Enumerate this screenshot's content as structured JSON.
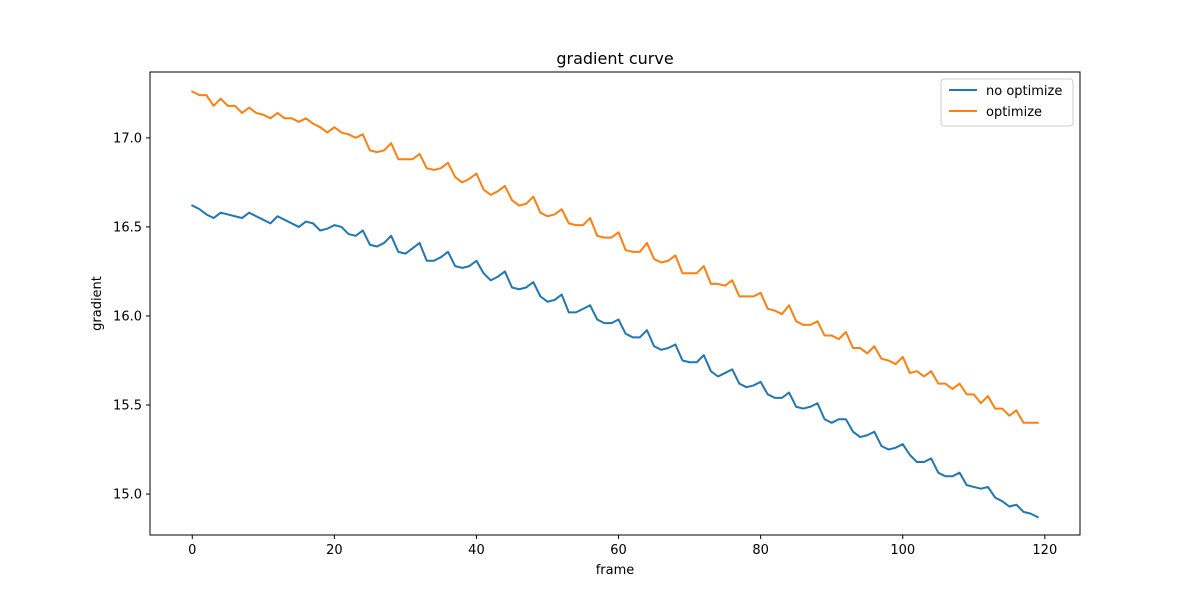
{
  "chart_data": {
    "type": "line",
    "title": "gradient curve",
    "xlabel": "frame",
    "ylabel": "gradient",
    "xlim": [
      -5.95,
      124.95
    ],
    "ylim": [
      14.77,
      17.37
    ],
    "xticks": [
      0,
      20,
      40,
      60,
      80,
      100,
      120
    ],
    "xtick_labels": [
      "0",
      "20",
      "40",
      "60",
      "80",
      "100",
      "120"
    ],
    "yticks": [
      15.0,
      15.5,
      16.0,
      16.5,
      17.0
    ],
    "ytick_labels": [
      "15.0",
      "15.5",
      "16.0",
      "16.5",
      "17.0"
    ],
    "grid": false,
    "legend_position": "top-right",
    "x": [
      0,
      1,
      2,
      3,
      4,
      5,
      6,
      7,
      8,
      9,
      10,
      11,
      12,
      13,
      14,
      15,
      16,
      17,
      18,
      19,
      20,
      21,
      22,
      23,
      24,
      25,
      26,
      27,
      28,
      29,
      30,
      31,
      32,
      33,
      34,
      35,
      36,
      37,
      38,
      39,
      40,
      41,
      42,
      43,
      44,
      45,
      46,
      47,
      48,
      49,
      50,
      51,
      52,
      53,
      54,
      55,
      56,
      57,
      58,
      59,
      60,
      61,
      62,
      63,
      64,
      65,
      66,
      67,
      68,
      69,
      70,
      71,
      72,
      73,
      74,
      75,
      76,
      77,
      78,
      79,
      80,
      81,
      82,
      83,
      84,
      85,
      86,
      87,
      88,
      89,
      90,
      91,
      92,
      93,
      94,
      95,
      96,
      97,
      98,
      99,
      100,
      101,
      102,
      103,
      104,
      105,
      106,
      107,
      108,
      109,
      110,
      111,
      112,
      113,
      114,
      115,
      116,
      117,
      118,
      119
    ],
    "series": [
      {
        "name": "no optimize",
        "color": "#1f77b4",
        "values": [
          16.62,
          16.6,
          16.57,
          16.55,
          16.58,
          16.57,
          16.56,
          16.55,
          16.58,
          16.56,
          16.54,
          16.52,
          16.56,
          16.54,
          16.52,
          16.5,
          16.53,
          16.52,
          16.48,
          16.49,
          16.51,
          16.5,
          16.46,
          16.45,
          16.48,
          16.4,
          16.39,
          16.41,
          16.45,
          16.36,
          16.35,
          16.38,
          16.41,
          16.31,
          16.31,
          16.33,
          16.36,
          16.28,
          16.27,
          16.28,
          16.31,
          16.24,
          16.2,
          16.22,
          16.25,
          16.16,
          16.15,
          16.16,
          16.19,
          16.11,
          16.08,
          16.09,
          16.12,
          16.02,
          16.02,
          16.04,
          16.06,
          15.98,
          15.96,
          15.96,
          15.98,
          15.9,
          15.88,
          15.88,
          15.92,
          15.83,
          15.81,
          15.82,
          15.84,
          15.75,
          15.74,
          15.74,
          15.78,
          15.69,
          15.66,
          15.68,
          15.7,
          15.62,
          15.6,
          15.61,
          15.63,
          15.56,
          15.54,
          15.54,
          15.57,
          15.49,
          15.48,
          15.49,
          15.51,
          15.42,
          15.4,
          15.42,
          15.42,
          15.35,
          15.32,
          15.33,
          15.35,
          15.27,
          15.25,
          15.26,
          15.28,
          15.22,
          15.18,
          15.18,
          15.2,
          15.12,
          15.1,
          15.1,
          15.12,
          15.05,
          15.04,
          15.03,
          15.04,
          14.98,
          14.96,
          14.93,
          14.94,
          14.9,
          14.89,
          14.87
        ]
      },
      {
        "name": "optimize",
        "color": "#ff7f0e",
        "values": [
          17.26,
          17.24,
          17.24,
          17.18,
          17.22,
          17.18,
          17.18,
          17.14,
          17.17,
          17.14,
          17.13,
          17.11,
          17.14,
          17.11,
          17.11,
          17.09,
          17.11,
          17.08,
          17.06,
          17.03,
          17.06,
          17.03,
          17.02,
          17.0,
          17.02,
          16.93,
          16.92,
          16.93,
          16.97,
          16.88,
          16.88,
          16.88,
          16.91,
          16.83,
          16.82,
          16.83,
          16.86,
          16.78,
          16.75,
          16.77,
          16.8,
          16.71,
          16.68,
          16.7,
          16.73,
          16.65,
          16.62,
          16.63,
          16.67,
          16.58,
          16.56,
          16.57,
          16.6,
          16.52,
          16.51,
          16.51,
          16.55,
          16.45,
          16.44,
          16.44,
          16.47,
          16.37,
          16.36,
          16.36,
          16.41,
          16.32,
          16.3,
          16.31,
          16.34,
          16.24,
          16.24,
          16.24,
          16.28,
          16.18,
          16.18,
          16.17,
          16.2,
          16.11,
          16.11,
          16.11,
          16.13,
          16.04,
          16.03,
          16.01,
          16.06,
          15.97,
          15.95,
          15.95,
          15.97,
          15.89,
          15.89,
          15.87,
          15.91,
          15.82,
          15.82,
          15.79,
          15.83,
          15.76,
          15.75,
          15.73,
          15.77,
          15.68,
          15.69,
          15.66,
          15.69,
          15.62,
          15.62,
          15.59,
          15.62,
          15.56,
          15.56,
          15.51,
          15.55,
          15.48,
          15.48,
          15.44,
          15.47,
          15.4,
          15.4,
          15.4
        ]
      }
    ]
  }
}
